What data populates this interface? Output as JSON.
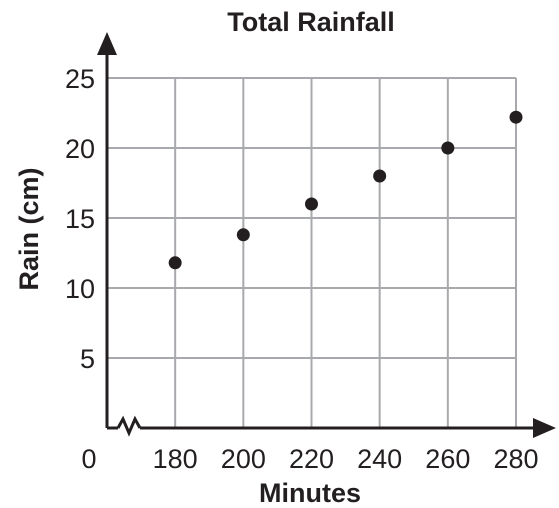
{
  "chart_data": {
    "type": "scatter",
    "title": "Total Rainfall",
    "xlabel": "Minutes",
    "ylabel": "Rain (cm)",
    "origin_label": "0",
    "x_ticks": [
      "180",
      "200",
      "220",
      "240",
      "260",
      "280"
    ],
    "y_ticks": [
      "5",
      "10",
      "15",
      "20",
      "25"
    ],
    "xlim": [
      160,
      280
    ],
    "ylim": [
      0,
      25
    ],
    "x_axis_break": true,
    "grid": true,
    "series": [
      {
        "x": [
          180,
          200,
          220,
          240,
          260,
          280
        ],
        "y": [
          11.8,
          13.8,
          16,
          18,
          20,
          22.2
        ]
      }
    ],
    "colors": {
      "ink": "#231f20",
      "grid": "#a7a9ac",
      "point": "#231f20"
    }
  }
}
